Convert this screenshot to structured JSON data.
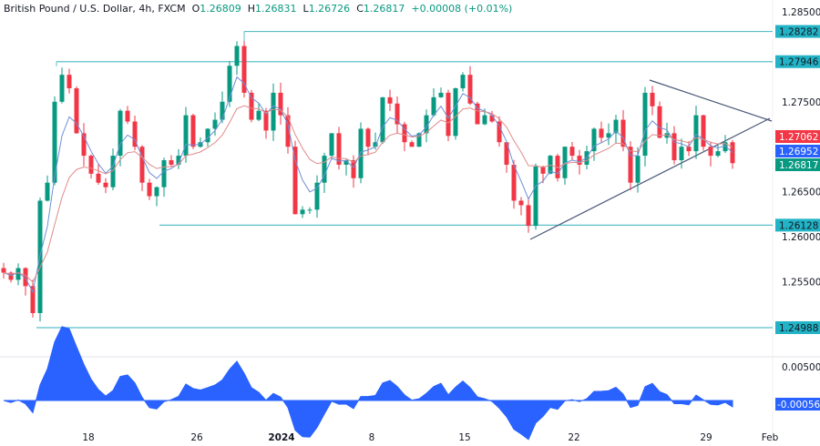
{
  "header": {
    "symbol": "British Pound / U.S. Dollar, 4h, FXCM",
    "open_label": "O",
    "open": "1.26809",
    "high_label": "H",
    "high": "1.26831",
    "low_label": "L",
    "low": "1.26726",
    "close_label": "C",
    "close": "1.26817",
    "change": "+0.00008 (+0.01%)"
  },
  "colors": {
    "up": "#089981",
    "down": "#f23645",
    "level_line": "#5bbfc9",
    "level_tag": "#22b4c6",
    "trendline": "#4a5878",
    "ma_fast": "#6f8fd8",
    "ma_slow": "#e08a8a",
    "oscillator": "#2962ff"
  },
  "chart_data": [
    {
      "type": "candlestick",
      "title": "British Pound / U.S. Dollar, 4h, FXCM",
      "ylim": [
        1.2485,
        1.286
      ],
      "y_ticks": [
        "1.28500",
        "1.27500",
        "1.26500",
        "1.26000",
        "1.25500"
      ],
      "x_ticks": [
        "18",
        "26",
        "2024",
        "8",
        "15",
        "22",
        "29",
        "Feb"
      ],
      "close": [
        1.256,
        1.2552,
        1.2565,
        1.2545,
        1.2515,
        1.264,
        1.266,
        1.275,
        1.278,
        1.2765,
        1.2715,
        1.269,
        1.267,
        1.266,
        1.2655,
        1.269,
        1.274,
        1.2728,
        1.27,
        1.266,
        1.2645,
        1.2655,
        1.2685,
        1.268,
        1.269,
        1.2735,
        1.27,
        1.2705,
        1.272,
        1.273,
        1.275,
        1.279,
        1.2812,
        1.276,
        1.273,
        1.274,
        1.2718,
        1.276,
        1.2735,
        1.27,
        1.2625,
        1.263,
        1.263,
        1.266,
        1.269,
        1.2715,
        1.268,
        1.2685,
        1.2665,
        1.272,
        1.27,
        1.2705,
        1.2755,
        1.2748,
        1.2725,
        1.2705,
        1.27,
        1.2715,
        1.2735,
        1.2755,
        1.276,
        1.2712,
        1.2765,
        1.278,
        1.2748,
        1.2725,
        1.2735,
        1.2728,
        1.2705,
        1.268,
        1.264,
        1.2635,
        1.2612,
        1.2678,
        1.267,
        1.269,
        1.2665,
        1.27,
        1.269,
        1.268,
        1.2695,
        1.272,
        1.271,
        1.2715,
        1.273,
        1.27,
        1.266,
        1.269,
        1.276,
        1.2745,
        1.271,
        1.2715,
        1.2685,
        1.27,
        1.2695,
        1.2735,
        1.27,
        1.269,
        1.2695,
        1.2705,
        1.26817
      ],
      "levels": [
        {
          "value": 1.28282,
          "label": "1.28282"
        },
        {
          "value": 1.27946,
          "label": "1.27946"
        },
        {
          "value": 1.26128,
          "label": "1.26128"
        },
        {
          "value": 1.24988,
          "label": "1.24988"
        }
      ],
      "price_tags": [
        {
          "value": 1.27062,
          "label": "1.27062",
          "color": "#f23645"
        },
        {
          "value": 1.26952,
          "label": "1.26952",
          "color": "#2962ff"
        },
        {
          "value": 1.26817,
          "label": "1.26817",
          "color": "#089981"
        }
      ]
    },
    {
      "type": "area",
      "ylim": [
        -0.002,
        0.006
      ],
      "y_ticks": [
        "0.00500"
      ],
      "last_value_tag": "-0.00056"
    }
  ]
}
